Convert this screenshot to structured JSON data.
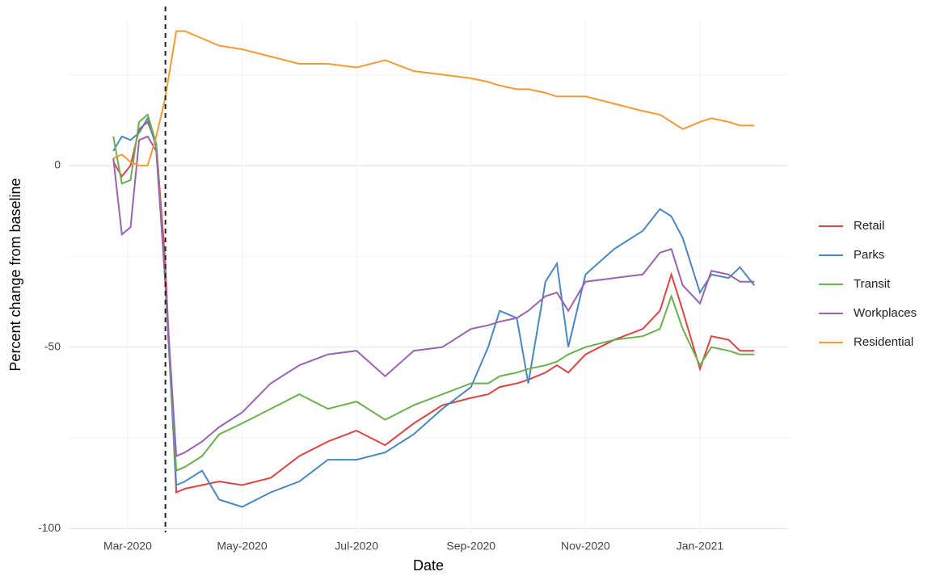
{
  "chart_data": {
    "type": "line",
    "x_label": "Date",
    "y_label": "Percent change from baseline",
    "x": [
      1.75,
      1.9,
      2.05,
      2.2,
      2.35,
      2.5,
      2.65,
      2.85,
      3.0,
      3.3,
      3.6,
      4.0,
      4.5,
      5.0,
      5.5,
      6.0,
      6.5,
      7.0,
      7.5,
      8.0,
      8.3,
      8.5,
      8.8,
      9.0,
      9.3,
      9.5,
      9.7,
      10.0,
      10.5,
      11.0,
      11.3,
      11.5,
      11.7,
      12.0,
      12.2,
      12.5,
      12.7,
      12.95
    ],
    "series": [
      {
        "name": "Retail",
        "color": "#dd4444",
        "values": [
          1,
          -3,
          0,
          10,
          12,
          6,
          -25,
          -90,
          -89,
          -88,
          -87,
          -88,
          -86,
          -80,
          -76,
          -73,
          -77,
          -71,
          -66,
          -64,
          -63,
          -61,
          -60,
          -59,
          -57,
          -55,
          -57,
          -52,
          -48,
          -45,
          -40,
          -30,
          -40,
          -56,
          -47,
          -48,
          -51,
          -51
        ]
      },
      {
        "name": "Parks",
        "color": "#4a86c0",
        "values": [
          4,
          8,
          7,
          9,
          13,
          5,
          -30,
          -88,
          -87,
          -84,
          -92,
          -94,
          -90,
          -87,
          -81,
          -81,
          -79,
          -74,
          -67,
          -61,
          -50,
          -40,
          -42,
          -60,
          -32,
          -27,
          -50,
          -30,
          -23,
          -18,
          -12,
          -14,
          -20,
          -35,
          -30,
          -31,
          -28,
          -33
        ]
      },
      {
        "name": "Transit",
        "color": "#6ab04c",
        "values": [
          8,
          -5,
          -4,
          12,
          14,
          6,
          -30,
          -84,
          -83,
          -80,
          -74,
          -71,
          -67,
          -63,
          -67,
          -65,
          -70,
          -66,
          -63,
          -60,
          -60,
          -58,
          -57,
          -56,
          -55,
          -54,
          -52,
          -50,
          -48,
          -47,
          -45,
          -36,
          -45,
          -55,
          -50,
          -51,
          -52,
          -52
        ]
      },
      {
        "name": "Workplaces",
        "color": "#9a62b0",
        "values": [
          2,
          -19,
          -17,
          7,
          8,
          4,
          -30,
          -80,
          -79,
          -76,
          -72,
          -68,
          -60,
          -55,
          -52,
          -51,
          -58,
          -51,
          -50,
          -45,
          -44,
          -43,
          -42,
          -40,
          -36,
          -35,
          -40,
          -32,
          -31,
          -30,
          -24,
          -23,
          -33,
          -38,
          -29,
          -30,
          -32,
          -32
        ]
      },
      {
        "name": "Residential",
        "color": "#f39a35",
        "values": [
          2,
          3,
          1,
          0,
          0,
          8,
          18,
          37,
          37,
          35,
          33,
          32,
          30,
          28,
          28,
          27,
          29,
          26,
          25,
          24,
          23,
          22,
          21,
          21,
          20,
          19,
          19,
          19,
          17,
          15,
          14,
          12,
          10,
          12,
          13,
          12,
          11,
          11
        ]
      }
    ],
    "xlim": [
      0.97,
      13.54
    ],
    "xticks": [
      {
        "value": 2,
        "label": "Mar-2020"
      },
      {
        "value": 4,
        "label": "May-2020"
      },
      {
        "value": 6,
        "label": "Jul-2020"
      },
      {
        "value": 8,
        "label": "Sep-2020"
      },
      {
        "value": 10,
        "label": "Nov-2020"
      },
      {
        "value": 12,
        "label": "Jan-2021"
      }
    ],
    "ylim": [
      -101,
      40
    ],
    "yticks": [
      -100,
      -50,
      0
    ],
    "yminor": [
      -75,
      -25,
      25
    ],
    "grid": true,
    "vline": 2.66,
    "legend": "right"
  }
}
